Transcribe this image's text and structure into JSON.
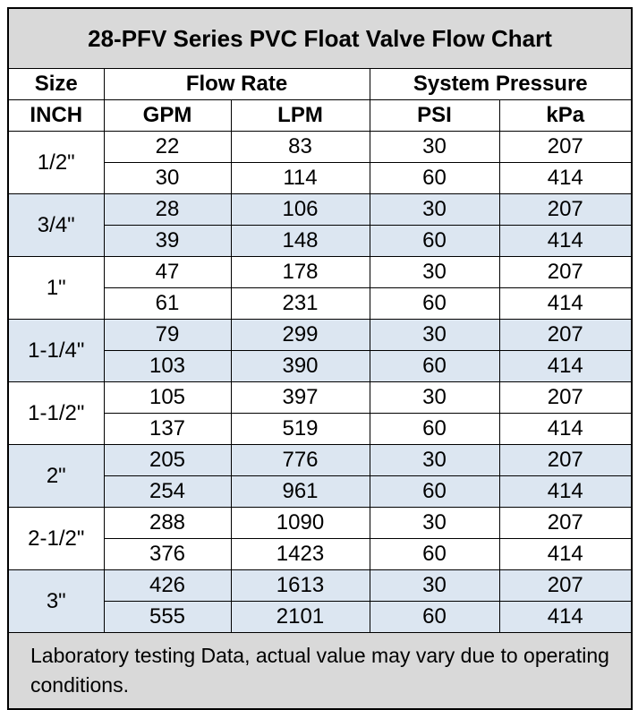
{
  "title": "28-PFV Series PVC Float Valve Flow Chart",
  "header": {
    "size": "Size",
    "flow_rate": "Flow Rate",
    "system_pressure": "System Pressure",
    "units": [
      "INCH",
      "GPM",
      "LPM",
      "PSI",
      "kPa"
    ]
  },
  "groups": [
    {
      "size": "1/2\"",
      "rows": [
        [
          22,
          83,
          30,
          207
        ],
        [
          30,
          114,
          60,
          414
        ]
      ]
    },
    {
      "size": "3/4\"",
      "rows": [
        [
          28,
          106,
          30,
          207
        ],
        [
          39,
          148,
          60,
          414
        ]
      ]
    },
    {
      "size": "1\"",
      "rows": [
        [
          47,
          178,
          30,
          207
        ],
        [
          61,
          231,
          60,
          414
        ]
      ]
    },
    {
      "size": "1-1/4\"",
      "rows": [
        [
          79,
          299,
          30,
          207
        ],
        [
          103,
          390,
          60,
          414
        ]
      ]
    },
    {
      "size": "1-1/2\"",
      "rows": [
        [
          105,
          397,
          30,
          207
        ],
        [
          137,
          519,
          60,
          414
        ]
      ]
    },
    {
      "size": "2\"",
      "rows": [
        [
          205,
          776,
          30,
          207
        ],
        [
          254,
          961,
          60,
          414
        ]
      ]
    },
    {
      "size": "2-1/2\"",
      "rows": [
        [
          288,
          1090,
          30,
          207
        ],
        [
          376,
          1423,
          60,
          414
        ]
      ]
    },
    {
      "size": "3\"",
      "rows": [
        [
          426,
          1613,
          30,
          207
        ],
        [
          555,
          2101,
          60,
          414
        ]
      ]
    }
  ],
  "footer": "Laboratory testing Data, actual value may vary due to operating conditions."
}
